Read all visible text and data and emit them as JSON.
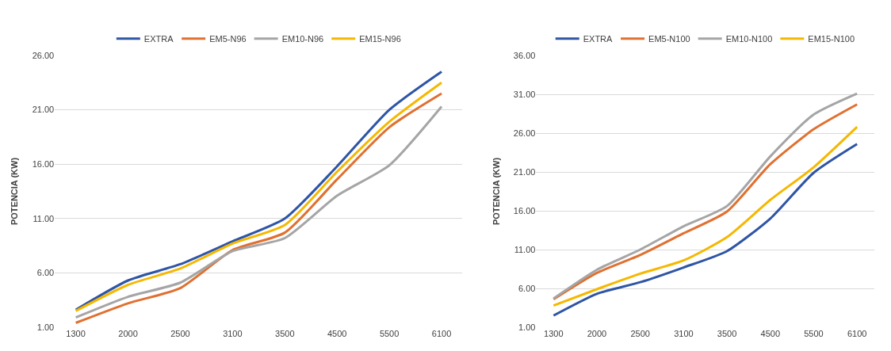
{
  "chart_data": [
    {
      "type": "line",
      "ylabel": "POTENCIA (KW)",
      "categories": [
        "1300",
        "2000",
        "2500",
        "3100",
        "3500",
        "4500",
        "5500",
        "6100"
      ],
      "series": [
        {
          "name": "EXTRA",
          "color": "#2e55a5",
          "values": [
            2.6,
            5.3,
            6.8,
            8.9,
            11.0,
            15.8,
            21.0,
            24.5
          ]
        },
        {
          "name": "EM5-N96",
          "color": "#e07030",
          "values": [
            1.4,
            3.2,
            4.6,
            8.1,
            9.7,
            14.6,
            19.4,
            22.5
          ]
        },
        {
          "name": "EM10-N96",
          "color": "#a5a5a5",
          "values": [
            1.9,
            3.8,
            5.1,
            8.0,
            9.2,
            13.1,
            15.9,
            21.3
          ]
        },
        {
          "name": "EM15-N96",
          "color": "#f5b800",
          "values": [
            2.5,
            4.9,
            6.4,
            8.7,
            10.4,
            15.3,
            19.9,
            23.5
          ]
        }
      ],
      "ylim": [
        1,
        26
      ],
      "yticks": [
        {
          "value": 1,
          "label": "1.00"
        },
        {
          "value": 6,
          "label": "6.00"
        },
        {
          "value": 11,
          "label": "11.00"
        },
        {
          "value": 16,
          "label": "16.00"
        },
        {
          "value": 21,
          "label": "21.00"
        },
        {
          "value": 26,
          "label": "26.00"
        }
      ],
      "grid": "y",
      "legend": "top",
      "marker": "none",
      "line_style": "solid"
    },
    {
      "type": "line",
      "ylabel": "POTENCIA (KW)",
      "categories": [
        "1300",
        "2000",
        "2500",
        "3100",
        "3500",
        "4500",
        "5500",
        "6100"
      ],
      "series": [
        {
          "name": "EXTRA",
          "color": "#2e55a5",
          "values": [
            2.5,
            5.3,
            6.8,
            8.7,
            10.8,
            15.0,
            20.9,
            24.6
          ]
        },
        {
          "name": "EM5-N100",
          "color": "#e07030",
          "values": [
            4.6,
            8.0,
            10.3,
            13.1,
            15.9,
            22.0,
            26.5,
            29.7
          ]
        },
        {
          "name": "EM10-N100",
          "color": "#a5a5a5",
          "values": [
            4.7,
            8.4,
            11.0,
            14.0,
            16.6,
            23.0,
            28.4,
            31.1
          ]
        },
        {
          "name": "EM15-N100",
          "color": "#f5b800",
          "values": [
            3.8,
            5.9,
            7.9,
            9.6,
            12.6,
            17.4,
            21.6,
            26.8
          ]
        }
      ],
      "ylim": [
        1,
        36
      ],
      "yticks": [
        {
          "value": 1,
          "label": "1.00"
        },
        {
          "value": 6,
          "label": "6.00"
        },
        {
          "value": 11,
          "label": "11.00"
        },
        {
          "value": 16,
          "label": "16.00"
        },
        {
          "value": 21,
          "label": "21.00"
        },
        {
          "value": 26,
          "label": "26.00"
        },
        {
          "value": 31,
          "label": "31.00"
        },
        {
          "value": 36,
          "label": "36.00"
        }
      ],
      "grid": "y",
      "legend": "top",
      "marker": "none",
      "line_style": "solid"
    }
  ]
}
